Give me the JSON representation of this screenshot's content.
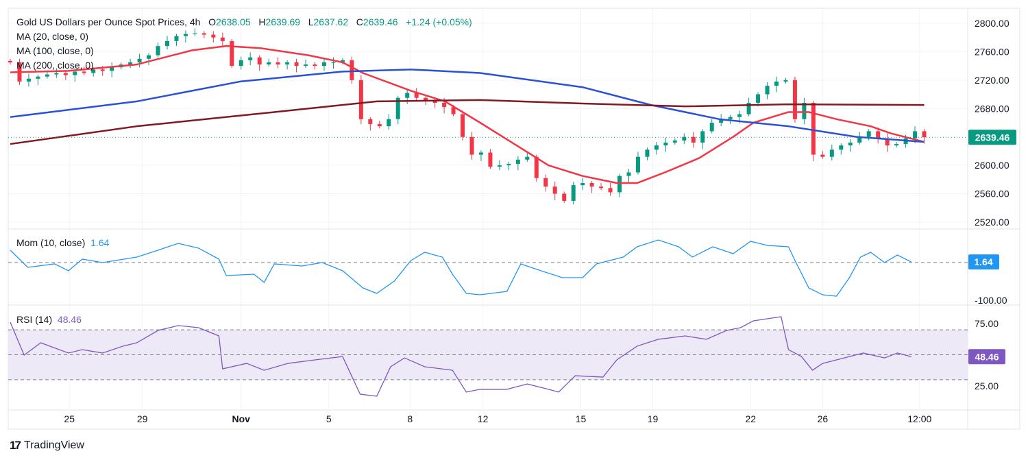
{
  "header": {
    "symbol_title": "Gold US Dollars per Ounce Spot Prices, 4h",
    "o_label": "O",
    "o": "2638.05",
    "h_label": "H",
    "h": "2639.69",
    "l_label": "L",
    "l": "2637.62",
    "c_label": "C",
    "c": "2639.46",
    "change": "+1.24 (+0.05%)"
  },
  "indicators": {
    "ma20": "MA (20, close, 0)",
    "ma100": "MA (100, close, 0)",
    "ma200": "MA (200, close, 0)",
    "mom": "Mom (10, close)",
    "mom_value": "1.64",
    "rsi": "RSI (14)",
    "rsi_value": "48.46"
  },
  "branding": {
    "logo_text": "TradingView"
  },
  "colors": {
    "up": "#089981",
    "down": "#f23645",
    "ma20": "#f23645",
    "ma100": "#2950d6",
    "ma200": "#801922",
    "mom": "#2196f3",
    "rsi": "#7e57c2",
    "rsi_band": "#ede9f7",
    "last_price": "#089981"
  },
  "chart_data": [
    {
      "type": "candlestick",
      "pane": "price",
      "interval": "4h",
      "ylim": [
        2520,
        2800
      ],
      "yticks": [
        "2800.00",
        "2760.00",
        "2720.00",
        "2680.00",
        "2600.00",
        "2560.00",
        "2520.00"
      ],
      "ytick_values": [
        2800,
        2760,
        2720,
        2680,
        2600,
        2560,
        2520
      ],
      "last_price_label": "2639.46",
      "last_price": 2639.46,
      "xticks": [
        "25",
        "29",
        "Nov",
        "5",
        "8",
        "12",
        "15",
        "19",
        "22",
        "26",
        "12:00"
      ],
      "xtick_index": [
        6.4,
        14.3,
        25,
        34.5,
        43.3,
        51.2,
        61.8,
        69.6,
        80.2,
        88,
        98.5
      ],
      "closes": [
        2745,
        2718,
        2722,
        2725,
        2728,
        2730,
        2727,
        2732,
        2730,
        2735,
        2733,
        2738,
        2742,
        2745,
        2750,
        2755,
        2768,
        2775,
        2782,
        2785,
        2786,
        2784,
        2780,
        2775,
        2740,
        2748,
        2752,
        2742,
        2745,
        2742,
        2745,
        2740,
        2742,
        2740,
        2745,
        2745,
        2748,
        2720,
        2665,
        2658,
        2655,
        2665,
        2695,
        2702,
        2695,
        2690,
        2688,
        2682,
        2672,
        2640,
        2615,
        2618,
        2598,
        2600,
        2602,
        2608,
        2612,
        2582,
        2570,
        2560,
        2550,
        2572,
        2575,
        2570,
        2568,
        2562,
        2585,
        2590,
        2612,
        2622,
        2628,
        2632,
        2635,
        2640,
        2632,
        2648,
        2660,
        2665,
        2668,
        2672,
        2688,
        2700,
        2712,
        2718,
        2720,
        2665,
        2688,
        2615,
        2612,
        2622,
        2628,
        2632,
        2640,
        2648,
        2638,
        2628,
        2630,
        2638,
        2648,
        2639.46
      ],
      "series": [
        {
          "name": "MA (20, close, 0)",
          "points": [
            [
              0,
              2731
            ],
            [
              6.3,
              2733
            ],
            [
              13.7,
              2742
            ],
            [
              19.7,
              2762
            ],
            [
              23.4,
              2768
            ],
            [
              27.1,
              2765
            ],
            [
              32.3,
              2755
            ],
            [
              36,
              2745
            ],
            [
              38.2,
              2730
            ],
            [
              43.4,
              2705
            ],
            [
              47.1,
              2690
            ],
            [
              50.9,
              2660
            ],
            [
              54.6,
              2630
            ],
            [
              58.3,
              2600
            ],
            [
              62,
              2585
            ],
            [
              65.7,
              2575
            ],
            [
              67.9,
              2575
            ],
            [
              70.9,
              2590
            ],
            [
              74.6,
              2610
            ],
            [
              78.3,
              2640
            ],
            [
              80.5,
              2660
            ],
            [
              84.3,
              2675
            ],
            [
              86.5,
              2675
            ],
            [
              89.5,
              2665
            ],
            [
              93.2,
              2655
            ],
            [
              95.4,
              2645
            ],
            [
              99,
              2633
            ]
          ]
        },
        {
          "name": "MA (100, close, 0)",
          "points": [
            [
              0,
              2668
            ],
            [
              13.7,
              2690
            ],
            [
              24.9,
              2718
            ],
            [
              36,
              2732
            ],
            [
              43.4,
              2735
            ],
            [
              50.9,
              2730
            ],
            [
              62,
              2710
            ],
            [
              69.4,
              2685
            ],
            [
              76.8,
              2665
            ],
            [
              84.3,
              2655
            ],
            [
              91.7,
              2640
            ],
            [
              99,
              2633
            ]
          ]
        },
        {
          "name": "MA (200, close, 0)",
          "points": [
            [
              0,
              2630
            ],
            [
              13.7,
              2655
            ],
            [
              28.6,
              2675
            ],
            [
              39.7,
              2690
            ],
            [
              50.9,
              2692
            ],
            [
              62,
              2687
            ],
            [
              73.1,
              2683
            ],
            [
              84.3,
              2686
            ],
            [
              99,
              2685
            ]
          ]
        }
      ]
    },
    {
      "type": "line",
      "pane": "momentum",
      "name": "Mom (10, close)",
      "yticks": [
        "-100.00"
      ],
      "ytick_values": [
        -100
      ],
      "zero_line": 0,
      "last_value_label": "1.64",
      "points": [
        [
          0,
          32.7
        ],
        [
          1.9,
          -12.7
        ],
        [
          4.8,
          -3.6
        ],
        [
          6.3,
          -21.8
        ],
        [
          7.8,
          9.1
        ],
        [
          10,
          0
        ],
        [
          13.7,
          14.5
        ],
        [
          16,
          32.7
        ],
        [
          18.2,
          50.9
        ],
        [
          20.4,
          38.2
        ],
        [
          22.6,
          9.1
        ],
        [
          23.4,
          -34.5
        ],
        [
          26.4,
          -30.9
        ],
        [
          27.5,
          -52.7
        ],
        [
          28.6,
          -3.6
        ],
        [
          31.6,
          -9.1
        ],
        [
          33.8,
          0
        ],
        [
          36,
          -21.8
        ],
        [
          38.2,
          -67.3
        ],
        [
          39.7,
          -81.8
        ],
        [
          41.6,
          -49.1
        ],
        [
          43.4,
          5.5
        ],
        [
          44.9,
          27.3
        ],
        [
          46.8,
          14.5
        ],
        [
          47.9,
          -30.9
        ],
        [
          49.4,
          -81.8
        ],
        [
          50.9,
          -85.5
        ],
        [
          53.8,
          -76.4
        ],
        [
          55.3,
          -3.6
        ],
        [
          57.5,
          -21.8
        ],
        [
          59.8,
          -40
        ],
        [
          62,
          -40
        ],
        [
          63.5,
          -3.6
        ],
        [
          66.4,
          14.5
        ],
        [
          67.9,
          41.8
        ],
        [
          70.2,
          60
        ],
        [
          72.4,
          41.8
        ],
        [
          73.9,
          14.5
        ],
        [
          76.1,
          41.8
        ],
        [
          78.3,
          23.6
        ],
        [
          80.2,
          56.4
        ],
        [
          82,
          45.5
        ],
        [
          84.3,
          41.8
        ],
        [
          85,
          5.5
        ],
        [
          86.5,
          -67.3
        ],
        [
          88,
          -85.5
        ],
        [
          89.5,
          -89.1
        ],
        [
          90.9,
          -40
        ],
        [
          92.1,
          14.5
        ],
        [
          93.2,
          27.3
        ],
        [
          94.7,
          0
        ],
        [
          96.1,
          20
        ],
        [
          97.6,
          1.64
        ]
      ]
    },
    {
      "type": "line",
      "pane": "rsi",
      "name": "RSI (14)",
      "yticks": [
        "75.00",
        "25.00"
      ],
      "ytick_values": [
        75,
        25
      ],
      "band": [
        30,
        70
      ],
      "mid": 50,
      "last_value_label": "48.46",
      "points": [
        [
          0,
          76.1
        ],
        [
          1.5,
          49.7
        ],
        [
          3.3,
          59.6
        ],
        [
          6.3,
          51.4
        ],
        [
          7.8,
          54.1
        ],
        [
          10,
          51.4
        ],
        [
          12.2,
          56.9
        ],
        [
          13.7,
          59.6
        ],
        [
          16,
          69.5
        ],
        [
          18.2,
          73.4
        ],
        [
          20.4,
          71.7
        ],
        [
          22.6,
          65.1
        ],
        [
          23,
          38.7
        ],
        [
          25.6,
          43.1
        ],
        [
          27.5,
          37.6
        ],
        [
          30.1,
          43.1
        ],
        [
          33,
          45.9
        ],
        [
          36,
          48.6
        ],
        [
          37.9,
          18.4
        ],
        [
          39.7,
          16.8
        ],
        [
          41.2,
          40.4
        ],
        [
          42.7,
          47.5
        ],
        [
          44.9,
          40.4
        ],
        [
          47.9,
          37.6
        ],
        [
          49.4,
          20.1
        ],
        [
          50.9,
          22.3
        ],
        [
          53.8,
          22.3
        ],
        [
          56,
          26.6
        ],
        [
          58.3,
          22.3
        ],
        [
          59.4,
          20.1
        ],
        [
          61.2,
          33.2
        ],
        [
          64.2,
          32.1
        ],
        [
          65.7,
          45.9
        ],
        [
          67.9,
          56.9
        ],
        [
          70.2,
          62.4
        ],
        [
          73.1,
          65.1
        ],
        [
          75.4,
          62.4
        ],
        [
          77.6,
          69.5
        ],
        [
          79.1,
          71.7
        ],
        [
          80.5,
          77.2
        ],
        [
          83.5,
          80.5
        ],
        [
          84.3,
          54.1
        ],
        [
          85.7,
          48.6
        ],
        [
          86.9,
          37.6
        ],
        [
          88,
          43.1
        ],
        [
          89.5,
          45.9
        ],
        [
          92.4,
          51.4
        ],
        [
          94.7,
          47.5
        ],
        [
          96.1,
          51.4
        ],
        [
          97.6,
          48.46
        ]
      ]
    }
  ]
}
